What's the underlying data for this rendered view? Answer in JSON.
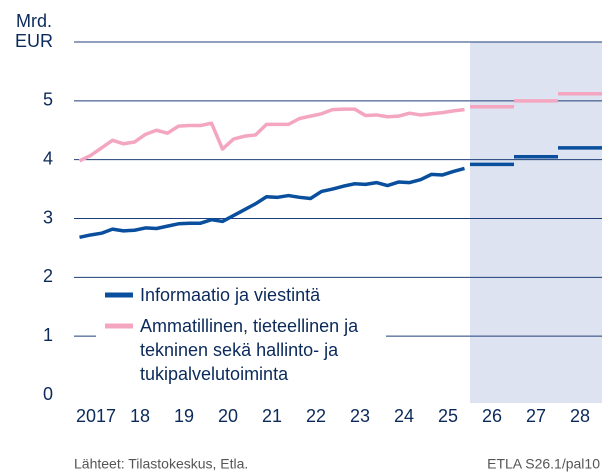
{
  "chart_data": {
    "type": "line",
    "y_label": [
      "Mrd.",
      "EUR"
    ],
    "source": "Lähteet:  Tilastokeskus, Etla.",
    "code": "ETLA S26.1/pal10",
    "xlim": [
      2017,
      2029
    ],
    "xticks": [
      2017,
      {
        "value": 2018,
        "label": "18"
      },
      {
        "value": 2019,
        "label": "19"
      },
      {
        "value": 2020,
        "label": "20"
      },
      {
        "value": 2021,
        "label": "21"
      },
      {
        "value": 2022,
        "label": "22"
      },
      {
        "value": 2023,
        "label": "23"
      },
      {
        "value": 2024,
        "label": "24"
      },
      {
        "value": 2025,
        "label": "25"
      },
      {
        "value": 2026,
        "label": "26"
      },
      {
        "value": 2027,
        "label": "27"
      },
      {
        "value": 2028,
        "label": "28"
      }
    ],
    "ylim": [
      0,
      6
    ],
    "yticks": [
      0,
      1,
      2,
      3,
      4,
      5
    ],
    "grid": true,
    "shade_xlim": [
      2026,
      2029
    ],
    "x": [
      2017.125,
      2017.375,
      2017.625,
      2017.875,
      2018.125,
      2018.375,
      2018.625,
      2018.875,
      2019.125,
      2019.375,
      2019.625,
      2019.875,
      2020.125,
      2020.375,
      2020.625,
      2020.875,
      2021.125,
      2021.375,
      2021.625,
      2021.875,
      2022.125,
      2022.375,
      2022.625,
      2022.875,
      2023.125,
      2023.375,
      2023.625,
      2023.875,
      2024.125,
      2024.375,
      2024.625,
      2024.875,
      2025.125,
      2025.375,
      2025.625,
      2025.875
    ],
    "forecast_years": [
      2026,
      2027,
      2028
    ],
    "series": [
      {
        "name": "Informaatio ja viestintä",
        "color": "#0a4f9e",
        "values": [
          2.68,
          2.72,
          2.75,
          2.82,
          2.79,
          2.8,
          2.84,
          2.83,
          2.87,
          2.91,
          2.92,
          2.92,
          2.98,
          2.95,
          3.05,
          3.15,
          3.25,
          3.37,
          3.36,
          3.39,
          3.36,
          3.34,
          3.46,
          3.5,
          3.55,
          3.59,
          3.58,
          3.61,
          3.56,
          3.62,
          3.61,
          3.66,
          3.75,
          3.74,
          3.8,
          3.85
        ],
        "forecast": [
          3.92,
          4.05,
          4.2
        ]
      },
      {
        "name": "Ammatillinen, tieteellinen ja tekninen sekä hallinto- ja tukipalvelutoiminta",
        "color": "#f4a6c0",
        "values": [
          3.98,
          4.07,
          4.2,
          4.33,
          4.27,
          4.3,
          4.43,
          4.5,
          4.45,
          4.57,
          4.58,
          4.58,
          4.62,
          4.18,
          4.35,
          4.4,
          4.42,
          4.6,
          4.6,
          4.6,
          4.7,
          4.74,
          4.78,
          4.85,
          4.86,
          4.86,
          4.75,
          4.76,
          4.73,
          4.74,
          4.79,
          4.76,
          4.78,
          4.8,
          4.83,
          4.85
        ],
        "forecast": [
          4.9,
          5.0,
          5.12
        ]
      }
    ]
  }
}
